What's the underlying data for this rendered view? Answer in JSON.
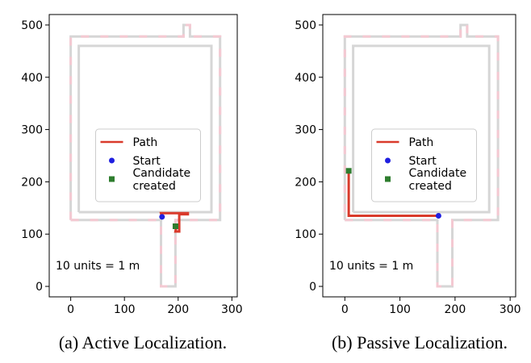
{
  "chart_data": [
    {
      "type": "line",
      "caption": "(a) Active Localization.",
      "xlim": [
        -40,
        310
      ],
      "ylim": [
        -20,
        520
      ],
      "x_ticks": [
        0,
        100,
        200,
        300
      ],
      "y_ticks": [
        0,
        100,
        200,
        300,
        400,
        500
      ],
      "grid": false,
      "legend": {
        "placement": "center",
        "entries": [
          {
            "label": "Path",
            "marker": "line",
            "color": "#d93a2b"
          },
          {
            "label": "Start",
            "marker": "circle",
            "color": "#1f1fe0"
          },
          {
            "label": "Candidate\ncreated",
            "marker": "square",
            "color": "#2e7d2e"
          }
        ]
      },
      "annotation": "10 units = 1 m",
      "map_outer": [
        [
          0,
          127
        ],
        [
          168,
          127
        ],
        [
          168,
          0
        ],
        [
          195,
          0
        ],
        [
          195,
          127
        ],
        [
          278,
          127
        ],
        [
          278,
          478
        ],
        [
          222,
          478
        ],
        [
          222,
          500
        ],
        [
          210,
          500
        ],
        [
          210,
          478
        ],
        [
          0,
          478
        ],
        [
          0,
          127
        ]
      ],
      "map_inner": [
        [
          15,
          142
        ],
        [
          262,
          142
        ],
        [
          262,
          460
        ],
        [
          15,
          460
        ],
        [
          15,
          142
        ]
      ],
      "path": [
        [
          170,
          133
        ],
        [
          168,
          140
        ],
        [
          218,
          140
        ],
        [
          218,
          138
        ],
        [
          202,
          138
        ],
        [
          202,
          105
        ],
        [
          195,
          105
        ],
        [
          198,
          120
        ]
      ],
      "start": [
        170,
        133
      ],
      "candidate": [
        195,
        115
      ]
    },
    {
      "type": "line",
      "caption": "(b) Passive Localization.",
      "xlim": [
        -40,
        310
      ],
      "ylim": [
        -20,
        520
      ],
      "x_ticks": [
        0,
        100,
        200,
        300
      ],
      "y_ticks": [
        0,
        100,
        200,
        300,
        400,
        500
      ],
      "grid": false,
      "legend": {
        "placement": "center",
        "entries": [
          {
            "label": "Path",
            "marker": "line",
            "color": "#d93a2b"
          },
          {
            "label": "Start",
            "marker": "circle",
            "color": "#1f1fe0"
          },
          {
            "label": "Candidate\ncreated",
            "marker": "square",
            "color": "#2e7d2e"
          }
        ]
      },
      "annotation": "10 units = 1 m",
      "map_outer": [
        [
          0,
          127
        ],
        [
          168,
          127
        ],
        [
          168,
          0
        ],
        [
          195,
          0
        ],
        [
          195,
          127
        ],
        [
          278,
          127
        ],
        [
          278,
          478
        ],
        [
          222,
          478
        ],
        [
          222,
          500
        ],
        [
          210,
          500
        ],
        [
          210,
          478
        ],
        [
          0,
          478
        ],
        [
          0,
          127
        ]
      ],
      "map_inner": [
        [
          15,
          142
        ],
        [
          262,
          142
        ],
        [
          262,
          460
        ],
        [
          15,
          460
        ],
        [
          15,
          142
        ]
      ],
      "path": [
        [
          170,
          135
        ],
        [
          7,
          135
        ],
        [
          7,
          221
        ]
      ],
      "start": [
        170,
        135
      ],
      "candidate": [
        7,
        221
      ]
    }
  ],
  "colors": {
    "wall": "#d6d6d6",
    "wall_outer": "#f4c9d2",
    "path": "#d93a2b",
    "start": "#1f1fe0",
    "candidate": "#2e7d2e",
    "axis": "#000000"
  }
}
